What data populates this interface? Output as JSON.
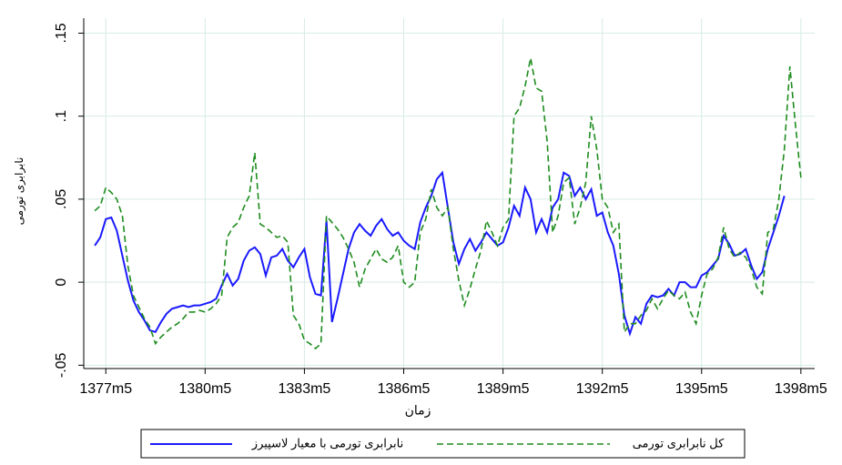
{
  "chart_data": {
    "type": "line",
    "y_label": "نابرابری تورمی",
    "x_label": "زمان",
    "x": [
      16524,
      16526,
      16528,
      16530,
      16532,
      16534,
      16536,
      16538,
      16540,
      16542,
      16544,
      16546,
      16548,
      16550,
      16552,
      16554,
      16556,
      16558,
      16560,
      16562,
      16564,
      16566,
      16568,
      16570,
      16572,
      16574,
      16576,
      16578,
      16580,
      16582,
      16584,
      16586,
      16588,
      16590,
      16592,
      16594,
      16596,
      16598,
      16600,
      16602,
      16604,
      16606,
      16608,
      16610,
      16612,
      16614,
      16616,
      16618,
      16620,
      16622,
      16624,
      16626,
      16628,
      16630,
      16632,
      16634,
      16636,
      16638,
      16640,
      16642,
      16644,
      16646,
      16648,
      16650,
      16652,
      16654,
      16656,
      16658,
      16660,
      16662,
      16664,
      16666,
      16668,
      16670,
      16672,
      16674,
      16676,
      16678,
      16680,
      16682,
      16684,
      16686,
      16688,
      16690,
      16692,
      16694,
      16696,
      16698,
      16700,
      16702,
      16704,
      16706,
      16708,
      16710,
      16712,
      16714,
      16716,
      16718,
      16720,
      16722,
      16724,
      16726,
      16728,
      16730,
      16732,
      16734,
      16736,
      16738,
      16740,
      16742,
      16744,
      16746,
      16748,
      16750,
      16752,
      16754,
      16756,
      16758,
      16760,
      16762,
      16764,
      16766,
      16768,
      16770,
      16772,
      16774,
      16776,
      16778,
      16780
    ],
    "series": [
      {
        "name": "نابرابری تورمی با معیار لاسپیرز",
        "color": "#1a1aff",
        "dash": false,
        "values": [
          0.022,
          0.027,
          0.038,
          0.039,
          0.031,
          0.016,
          0.001,
          -0.011,
          -0.018,
          -0.023,
          -0.029,
          -0.03,
          -0.024,
          -0.019,
          -0.016,
          -0.015,
          -0.014,
          -0.015,
          -0.014,
          -0.014,
          -0.013,
          -0.012,
          -0.01,
          -0.002,
          0.005,
          -0.002,
          0.002,
          0.013,
          0.019,
          0.021,
          0.017,
          0.004,
          0.015,
          0.016,
          0.02,
          0.013,
          0.009,
          0.015,
          0.02,
          0.003,
          -0.007,
          -0.008,
          0.037,
          -0.024,
          -0.01,
          0.005,
          0.02,
          0.03,
          0.035,
          0.031,
          0.028,
          0.034,
          0.038,
          0.032,
          0.028,
          0.03,
          0.025,
          0.022,
          0.02,
          0.036,
          0.045,
          0.052,
          0.062,
          0.066,
          0.045,
          0.024,
          0.011,
          0.02,
          0.026,
          0.019,
          0.024,
          0.03,
          0.026,
          0.022,
          0.024,
          0.033,
          0.046,
          0.04,
          0.057,
          0.05,
          0.03,
          0.038,
          0.03,
          0.045,
          0.05,
          0.066,
          0.064,
          0.052,
          0.057,
          0.05,
          0.056,
          0.04,
          0.042,
          0.03,
          0.022,
          0.005,
          -0.02,
          -0.031,
          -0.021,
          -0.025,
          -0.013,
          -0.008,
          -0.009,
          -0.008,
          -0.004,
          -0.008,
          0.0,
          0.0,
          -0.003,
          -0.003,
          0.004,
          0.006,
          0.01,
          0.014,
          0.028,
          0.023,
          0.016,
          0.017,
          0.02,
          0.01,
          0.002,
          0.006,
          0.02,
          0.03,
          0.04,
          0.052,
          null,
          null,
          null
        ]
      },
      {
        "name": "کل نابرابری تورمی",
        "color": "#1e8c1e",
        "dash": true,
        "values": [
          0.043,
          0.046,
          0.057,
          0.054,
          0.05,
          0.04,
          0.01,
          -0.008,
          -0.015,
          -0.022,
          -0.027,
          -0.037,
          -0.033,
          -0.03,
          -0.027,
          -0.025,
          -0.022,
          -0.018,
          -0.018,
          -0.017,
          -0.018,
          -0.016,
          -0.013,
          -0.008,
          0.027,
          0.033,
          0.036,
          0.045,
          0.052,
          0.078,
          0.035,
          0.033,
          0.03,
          0.027,
          0.028,
          0.024,
          -0.02,
          -0.025,
          -0.035,
          -0.037,
          -0.04,
          -0.037,
          0.04,
          0.036,
          0.032,
          0.027,
          0.02,
          0.012,
          -0.003,
          0.008,
          0.014,
          0.02,
          0.014,
          0.012,
          0.015,
          0.022,
          0.0,
          -0.003,
          0.0,
          0.03,
          0.038,
          0.056,
          0.045,
          0.04,
          0.045,
          0.02,
          0.001,
          -0.014,
          -0.004,
          0.008,
          0.019,
          0.037,
          0.03,
          0.022,
          0.033,
          0.038,
          0.1,
          0.105,
          0.118,
          0.135,
          0.117,
          0.115,
          0.085,
          0.03,
          0.04,
          0.06,
          0.063,
          0.035,
          0.045,
          0.06,
          0.1,
          0.08,
          0.05,
          0.045,
          0.03,
          0.035,
          -0.03,
          -0.025,
          -0.025,
          -0.02,
          -0.017,
          -0.01,
          -0.016,
          -0.01,
          -0.005,
          -0.008,
          -0.01,
          -0.006,
          -0.018,
          -0.025,
          -0.008,
          0.005,
          0.008,
          0.015,
          0.033,
          0.02,
          0.015,
          0.018,
          0.015,
          0.008,
          -0.003,
          -0.007,
          0.03,
          0.032,
          0.05,
          0.08,
          0.13,
          0.095,
          0.063
        ]
      }
    ],
    "xlim": [
      16520,
      16785
    ],
    "ylim": [
      -0.052,
      0.159
    ],
    "xticks": [
      {
        "value": 16528,
        "label": "1377m5"
      },
      {
        "value": 16564,
        "label": "1380m5"
      },
      {
        "value": 16600,
        "label": "1383m5"
      },
      {
        "value": 16636,
        "label": "1386m5"
      },
      {
        "value": 16672,
        "label": "1389m5"
      },
      {
        "value": 16708,
        "label": "1392m5"
      },
      {
        "value": 16744,
        "label": "1395m5"
      },
      {
        "value": 16780,
        "label": "1398m5"
      }
    ],
    "yticks": [
      {
        "value": -0.05,
        "label": "-.05"
      },
      0,
      {
        "value": 0.05,
        "label": ".05"
      },
      {
        "value": 0.1,
        "label": ".1"
      },
      {
        "value": 0.15,
        "label": ".15"
      }
    ],
    "grid": true,
    "grid_color": "#d6ebe4",
    "legend_position": "bottom"
  }
}
